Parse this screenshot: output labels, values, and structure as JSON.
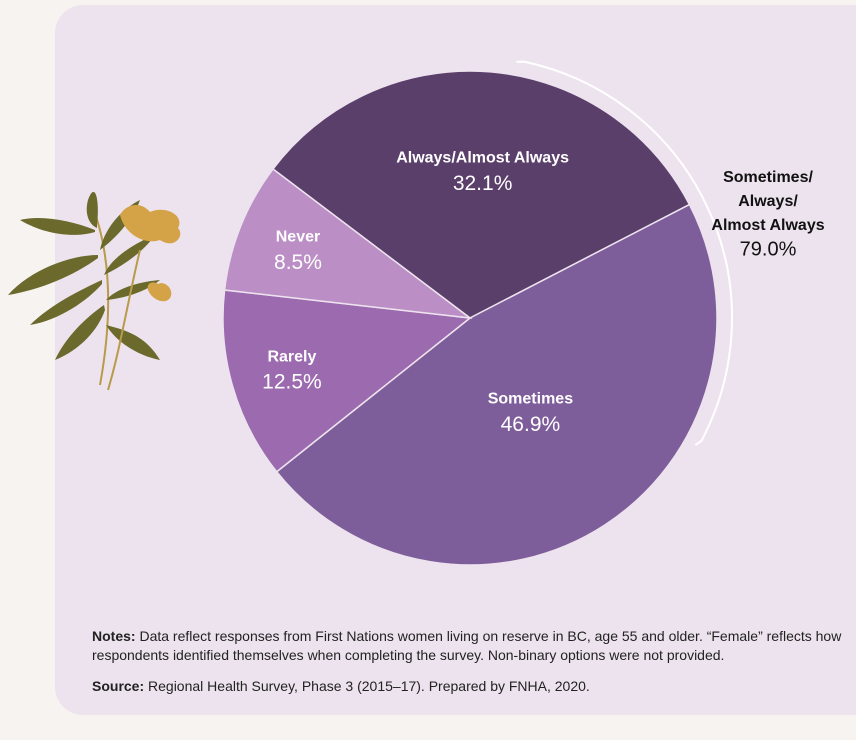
{
  "chart_data": {
    "type": "pie",
    "categories": [
      "Always/Almost Always",
      "Sometimes",
      "Rarely",
      "Never"
    ],
    "values": [
      32.1,
      46.9,
      12.5,
      8.5
    ],
    "value_labels": [
      "32.1%",
      "46.9%",
      "12.5%",
      "8.5%"
    ],
    "colors": [
      "#5b3f6b",
      "#7e5d9b",
      "#9b6aaf",
      "#bb8fc5"
    ],
    "annotation": {
      "lines": [
        "Sometimes/",
        "Always/",
        "Almost Always"
      ],
      "value": 79.0,
      "value_label": "79.0%"
    }
  },
  "notes": {
    "label": "Notes:",
    "text": "Data reflect responses from First Nations women living on reserve in BC, age 55 and older. “Female” reflects how respondents identified themselves when completing the survey. Non-binary options were not provided."
  },
  "source": {
    "label": "Source:",
    "text": "Regional Health Survey, Phase 3 (2015–17). Prepared by FNHA, 2020."
  }
}
